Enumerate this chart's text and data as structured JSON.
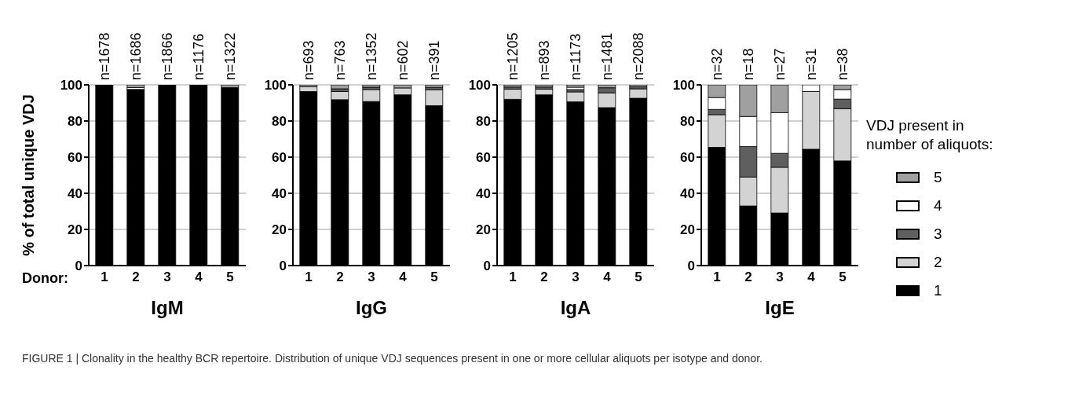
{
  "chart_data": [
    {
      "type": "bar",
      "stacked": true,
      "xlabel": "IgM",
      "ylabel": "% of total unique VDJ",
      "categories": [
        "1",
        "2",
        "3",
        "4",
        "5"
      ],
      "ylim": [
        0,
        100
      ],
      "yticks": [
        0,
        20,
        40,
        60,
        80,
        100
      ],
      "grid": "y",
      "legend": false,
      "annotations": [
        "Donor:",
        "FIGURE 1 | Clonality in the healthy BCR repertoire. Distribution of unique VDJ sequences present in one or more cellular aliquots per isotype and donor.",
        {
          "text": "n=1678",
          "x": "1",
          "y": 100
        },
        {
          "text": "n=1686",
          "x": "2",
          "y": 100
        },
        {
          "text": "n=1866",
          "x": "3",
          "y": 100
        },
        {
          "text": "n=1176",
          "x": "4",
          "y": 100
        },
        {
          "text": "n=1322",
          "x": "5",
          "y": 100
        }
      ],
      "series": [
        {
          "color": "#000000",
          "values": [
            100,
            97.5,
            100,
            100,
            98.5
          ]
        },
        {
          "color": "#d3d3d3",
          "values": [
            0,
            0,
            0,
            0,
            0
          ]
        },
        {
          "color": "#5f5f5f",
          "values": [
            0,
            0,
            0,
            0,
            0
          ]
        },
        {
          "color": "#ffffff",
          "values": [
            0,
            1,
            0,
            0,
            0
          ]
        },
        {
          "color": "#a0a0a0",
          "values": [
            0,
            1.5,
            0,
            0,
            1.5
          ]
        }
      ]
    },
    {
      "type": "bar",
      "stacked": true,
      "xlabel": "IgG",
      "categories": [
        "1",
        "2",
        "3",
        "4",
        "5"
      ],
      "ylim": [
        0,
        100
      ],
      "yticks": [
        0,
        20,
        40,
        60,
        80,
        100
      ],
      "grid": "y",
      "legend": false,
      "annotations": [
        {
          "text": "n=693",
          "x": "1",
          "y": 100
        },
        {
          "text": "n=763",
          "x": "2",
          "y": 100
        },
        {
          "text": "n=1352",
          "x": "3",
          "y": 100
        },
        {
          "text": "n=602",
          "x": "4",
          "y": 100
        },
        {
          "text": "n=391",
          "x": "5",
          "y": 100
        }
      ],
      "series": [
        {
          "color": "#000000",
          "values": [
            96.3,
            91.8,
            90.8,
            94.5,
            88.5
          ]
        },
        {
          "color": "#d3d3d3",
          "values": [
            2.7,
            4.5,
            6.6,
            3.8,
            8.8
          ]
        },
        {
          "color": "#5f5f5f",
          "values": [
            0,
            1.5,
            1.3,
            0,
            1.3
          ]
        },
        {
          "color": "#ffffff",
          "values": [
            0,
            0,
            0,
            0,
            0
          ]
        },
        {
          "color": "#a0a0a0",
          "values": [
            1,
            2.2,
            1.3,
            1.7,
            1.4
          ]
        }
      ]
    },
    {
      "type": "bar",
      "stacked": true,
      "xlabel": "IgA",
      "categories": [
        "1",
        "2",
        "3",
        "4",
        "5"
      ],
      "ylim": [
        0,
        100
      ],
      "yticks": [
        0,
        20,
        40,
        60,
        80,
        100
      ],
      "grid": "y",
      "legend": false,
      "annotations": [
        {
          "text": "n=1205",
          "x": "1",
          "y": 100
        },
        {
          "text": "n=893",
          "x": "2",
          "y": 100
        },
        {
          "text": "n=1173",
          "x": "3",
          "y": 100
        },
        {
          "text": "n=1481",
          "x": "4",
          "y": 100
        },
        {
          "text": "n=2088",
          "x": "5",
          "y": 100
        }
      ],
      "series": [
        {
          "color": "#000000",
          "values": [
            92,
            94.5,
            90.6,
            87.4,
            92.6
          ]
        },
        {
          "color": "#d3d3d3",
          "values": [
            5.6,
            3.1,
            5.5,
            8.2,
            5.2
          ]
        },
        {
          "color": "#5f5f5f",
          "values": [
            1.2,
            1.2,
            1.3,
            2.8,
            1.1
          ]
        },
        {
          "color": "#ffffff",
          "values": [
            0,
            0,
            1.3,
            0,
            0
          ]
        },
        {
          "color": "#a0a0a0",
          "values": [
            1.2,
            1.2,
            1.3,
            1.6,
            1.1
          ]
        }
      ]
    },
    {
      "type": "bar",
      "stacked": true,
      "xlabel": "IgE",
      "categories": [
        "1",
        "2",
        "3",
        "4",
        "5"
      ],
      "ylim": [
        0,
        100
      ],
      "yticks": [
        0,
        20,
        40,
        60,
        80,
        100
      ],
      "grid": "y",
      "legend": "right",
      "legend_title": "VDJ present in number of aliquots:",
      "annotations": [
        {
          "text": "n=32",
          "x": "1",
          "y": 100
        },
        {
          "text": "n=18",
          "x": "2",
          "y": 100
        },
        {
          "text": "n=27",
          "x": "3",
          "y": 100
        },
        {
          "text": "n=31",
          "x": "4",
          "y": 100
        },
        {
          "text": "n=38",
          "x": "5",
          "y": 100
        }
      ],
      "series": [
        {
          "name": "1",
          "color": "#000000",
          "values": [
            65.4,
            33,
            29.1,
            64.4,
            57.9
          ]
        },
        {
          "name": "2",
          "color": "#d3d3d3",
          "values": [
            18.1,
            16,
            25.3,
            31.9,
            28.9
          ]
        },
        {
          "name": "3",
          "color": "#5f5f5f",
          "values": [
            2.9,
            16.9,
            7.7,
            0,
            5.3
          ]
        },
        {
          "name": "4",
          "color": "#ffffff",
          "values": [
            6.6,
            16.6,
            22.5,
            3.7,
            5.3
          ]
        },
        {
          "name": "5",
          "color": "#a0a0a0",
          "values": [
            7,
            17.5,
            15.4,
            0,
            2.6
          ]
        }
      ]
    }
  ]
}
